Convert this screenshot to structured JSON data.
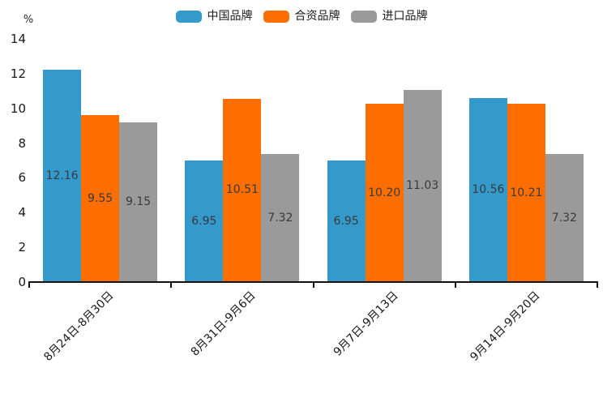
{
  "chart_data": {
    "type": "bar",
    "title": "",
    "ylabel": "%",
    "xlabel": "",
    "ylim": [
      0,
      14
    ],
    "yticks": [
      0,
      2,
      4,
      6,
      8,
      10,
      12,
      14
    ],
    "grid": false,
    "legend_position": "top-center",
    "value_label_style": "inside-center-2-decimals",
    "categories": [
      "8月24日-8月30日",
      "8月31日-9月6日",
      "9月7日-9月13日",
      "9月14日-9月20日"
    ],
    "series": [
      {
        "name": "中国品牌",
        "color": "#3499CB",
        "values": [
          12.16,
          6.95,
          6.95,
          10.56
        ]
      },
      {
        "name": "合资品牌",
        "color": "#FD6E01",
        "values": [
          9.55,
          10.51,
          10.2,
          10.21
        ]
      },
      {
        "name": "进口品牌",
        "color": "#9A9A9A",
        "values": [
          9.15,
          7.32,
          11.03,
          7.32
        ]
      }
    ],
    "colors": {
      "axis": "#111111",
      "tick_text": "#1a1a1a",
      "value_text": "#3a3a3a",
      "background": "#ffffff"
    }
  }
}
